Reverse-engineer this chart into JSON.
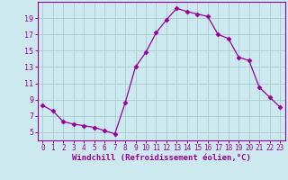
{
  "x": [
    0,
    1,
    2,
    3,
    4,
    5,
    6,
    7,
    8,
    9,
    10,
    11,
    12,
    13,
    14,
    15,
    16,
    17,
    18,
    19,
    20,
    21,
    22,
    23
  ],
  "y": [
    8.3,
    7.6,
    6.3,
    6.0,
    5.8,
    5.6,
    5.2,
    4.8,
    8.6,
    13.0,
    14.8,
    17.2,
    18.8,
    20.2,
    19.8,
    19.5,
    19.2,
    17.0,
    16.5,
    14.2,
    13.8,
    10.5,
    9.3,
    8.1
  ],
  "line_color": "#990099",
  "marker": "D",
  "marker_size": 2.5,
  "bg_color": "#cce9f0",
  "grid_color": "#aacccc",
  "xlabel": "Windchill (Refroidissement éolien,°C)",
  "ylabel": "",
  "xlim": [
    -0.5,
    23.5
  ],
  "ylim": [
    4.0,
    21.0
  ],
  "yticks": [
    5,
    7,
    9,
    11,
    13,
    15,
    17,
    19
  ],
  "xticks": [
    0,
    1,
    2,
    3,
    4,
    5,
    6,
    7,
    8,
    9,
    10,
    11,
    12,
    13,
    14,
    15,
    16,
    17,
    18,
    19,
    20,
    21,
    22,
    23
  ],
  "title_fontsize": 6,
  "tick_fontsize": 5.5,
  "xlabel_fontsize": 6.5
}
